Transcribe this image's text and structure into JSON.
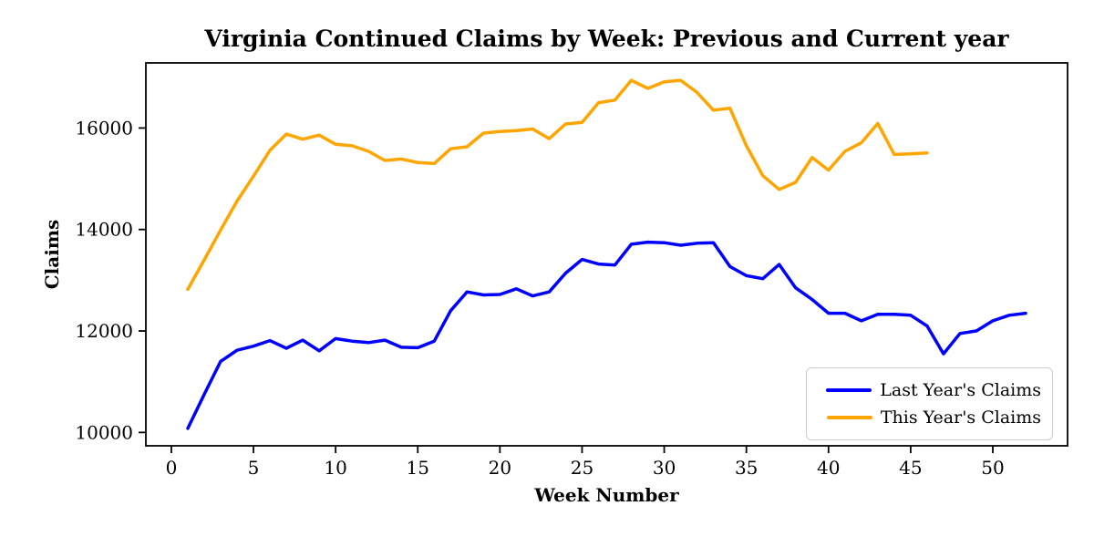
{
  "chart_data": {
    "type": "line",
    "title": "Virginia Continued Claims by Week: Previous and Current year",
    "xlabel": "Week Number",
    "ylabel": "Claims",
    "xlim": [
      -1.55,
      54.55
    ],
    "ylim": [
      9737,
      17283
    ],
    "x_ticks": [
      0,
      5,
      10,
      15,
      20,
      25,
      30,
      35,
      40,
      45,
      50
    ],
    "y_ticks": [
      10000,
      12000,
      14000,
      16000
    ],
    "grid": false,
    "background": "#ffffff",
    "axis_color": "#000000",
    "legend_position": "lower right",
    "series": [
      {
        "name": "Last Year's Claims",
        "color": "#0000ff",
        "weeks": [
          1,
          2,
          3,
          4,
          5,
          6,
          7,
          8,
          9,
          10,
          11,
          12,
          13,
          14,
          15,
          16,
          17,
          18,
          19,
          20,
          21,
          22,
          23,
          24,
          25,
          26,
          27,
          28,
          29,
          30,
          31,
          32,
          33,
          34,
          35,
          36,
          37,
          38,
          39,
          40,
          41,
          42,
          43,
          44,
          45,
          46,
          47,
          48,
          49,
          50,
          51,
          52
        ],
        "values": [
          10080,
          10750,
          11400,
          11620,
          11700,
          11810,
          11660,
          11820,
          11610,
          11850,
          11800,
          11770,
          11820,
          11680,
          11670,
          11800,
          12400,
          12770,
          12710,
          12720,
          12830,
          12690,
          12770,
          13140,
          13410,
          13320,
          13300,
          13710,
          13750,
          13740,
          13690,
          13730,
          13740,
          13270,
          13090,
          13030,
          13310,
          12850,
          12620,
          12350,
          12350,
          12200,
          12330,
          12330,
          12310,
          12100,
          11550,
          11950,
          12000,
          12200,
          12310,
          12350
        ]
      },
      {
        "name": "This Year's Claims",
        "color": "#ffa500",
        "weeks": [
          1,
          2,
          3,
          4,
          5,
          6,
          7,
          8,
          9,
          10,
          11,
          12,
          13,
          14,
          15,
          16,
          17,
          18,
          19,
          20,
          21,
          22,
          23,
          24,
          25,
          26,
          27,
          28,
          29,
          30,
          31,
          32,
          33,
          34,
          35,
          36,
          37,
          38,
          39,
          40,
          41,
          42,
          43,
          44,
          45,
          46
        ],
        "values": [
          12820,
          13400,
          13990,
          14560,
          15050,
          15560,
          15880,
          15780,
          15860,
          15680,
          15650,
          15540,
          15360,
          15390,
          15320,
          15300,
          15590,
          15630,
          15900,
          15930,
          15950,
          15980,
          15790,
          16080,
          16110,
          16500,
          16550,
          16940,
          16780,
          16910,
          16940,
          16700,
          16350,
          16390,
          15650,
          15060,
          14790,
          14930,
          15420,
          15170,
          15540,
          15710,
          16090,
          15480,
          15490,
          15510
        ]
      }
    ]
  }
}
